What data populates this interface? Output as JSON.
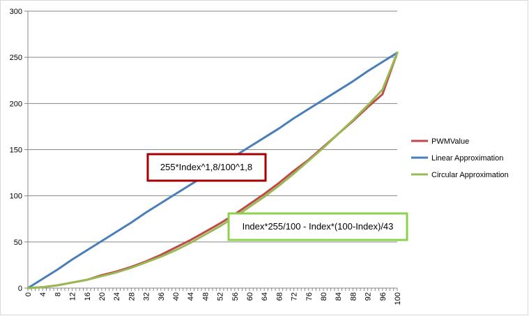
{
  "chart_data": {
    "type": "line",
    "title": "",
    "xlabel": "",
    "ylabel": "",
    "xlim": [
      0,
      100
    ],
    "ylim": [
      0,
      300
    ],
    "x_ticks": [
      0,
      4,
      8,
      12,
      16,
      20,
      24,
      28,
      32,
      36,
      40,
      44,
      48,
      52,
      56,
      60,
      64,
      68,
      72,
      76,
      80,
      84,
      88,
      92,
      96,
      100
    ],
    "y_ticks": [
      0,
      50,
      100,
      150,
      200,
      250,
      300
    ],
    "grid": "horizontal",
    "legend_position": "right",
    "series": [
      {
        "name": "PWMValue",
        "color": "#be4b48",
        "x": [
          0,
          4,
          8,
          12,
          16,
          20,
          24,
          28,
          32,
          36,
          40,
          44,
          48,
          52,
          56,
          60,
          64,
          68,
          72,
          76,
          80,
          84,
          88,
          92,
          96,
          100
        ],
        "values": [
          0,
          1,
          3,
          6,
          9,
          14,
          18,
          23,
          29,
          36,
          44,
          52,
          61,
          70,
          80,
          91,
          102,
          114,
          127,
          139,
          153,
          167,
          181,
          196,
          210,
          255
        ]
      },
      {
        "name": "Linear Approximation",
        "color": "#4a7ebb",
        "x": [
          0,
          4,
          8,
          12,
          16,
          20,
          24,
          28,
          32,
          36,
          40,
          44,
          48,
          52,
          56,
          60,
          64,
          68,
          72,
          76,
          80,
          84,
          88,
          92,
          96,
          100
        ],
        "values": [
          0,
          10,
          20,
          31,
          41,
          51,
          61,
          71,
          82,
          92,
          102,
          112,
          122,
          133,
          143,
          153,
          163,
          173,
          184,
          194,
          204,
          214,
          224,
          235,
          245,
          255
        ]
      },
      {
        "name": "Circular Approximation",
        "color": "#98b954",
        "x": [
          0,
          4,
          8,
          12,
          16,
          20,
          24,
          28,
          32,
          36,
          40,
          44,
          48,
          52,
          56,
          60,
          64,
          68,
          72,
          76,
          80,
          84,
          88,
          92,
          96,
          100
        ],
        "values": [
          0,
          1,
          3,
          6,
          9,
          13,
          17,
          22,
          28,
          34,
          41,
          49,
          58,
          67,
          77,
          88,
          99,
          111,
          124,
          138,
          152,
          167,
          182,
          198,
          215,
          255
        ]
      }
    ],
    "annotations": [
      {
        "text": "255*Index^1,8/100^1,8",
        "border_color": "#a80000"
      },
      {
        "text": "Index*255/100 - Index*(100-Index)/43",
        "border_color": "#8fd14f"
      }
    ]
  }
}
